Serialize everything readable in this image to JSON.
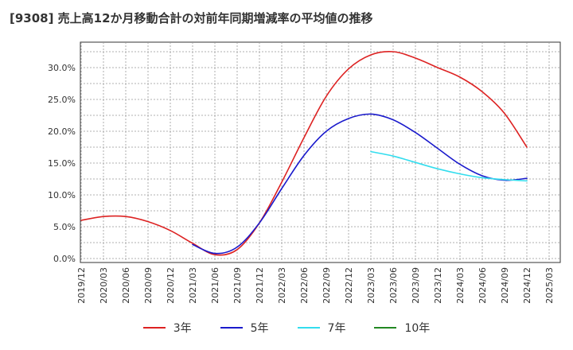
{
  "chart_data": {
    "type": "line",
    "title": "[9308]  売上高12か月移動合計の対前年同期増減率の平均値の推移",
    "xlabel": "",
    "ylabel": "",
    "ylim": [
      0,
      33.5
    ],
    "yticks": [
      "0.0%",
      "5.0%",
      "10.0%",
      "15.0%",
      "20.0%",
      "25.0%",
      "30.0%"
    ],
    "xticks": [
      "2019/12",
      "2020/03",
      "2020/06",
      "2020/09",
      "2020/12",
      "2021/03",
      "2021/06",
      "2021/09",
      "2021/12",
      "2022/03",
      "2022/06",
      "2022/09",
      "2022/12",
      "2023/03",
      "2023/06",
      "2023/09",
      "2023/12",
      "2024/03",
      "2024/06",
      "2024/09",
      "2024/12",
      "2025/03"
    ],
    "grid": true,
    "legend_position": "bottom",
    "series": [
      {
        "name": "3年",
        "color": "#dd2222",
        "points": [
          [
            "2019/12",
            6.0
          ],
          [
            "2020/03",
            6.6
          ],
          [
            "2020/06",
            6.6
          ],
          [
            "2020/09",
            5.8
          ],
          [
            "2020/12",
            4.4
          ],
          [
            "2021/03",
            2.4
          ],
          [
            "2021/06",
            0.6
          ],
          [
            "2021/09",
            1.4
          ],
          [
            "2021/12",
            5.6
          ],
          [
            "2022/03",
            12.0
          ],
          [
            "2022/06",
            19.0
          ],
          [
            "2022/09",
            25.5
          ],
          [
            "2022/12",
            29.8
          ],
          [
            "2023/03",
            32.0
          ],
          [
            "2023/06",
            32.5
          ],
          [
            "2023/09",
            31.5
          ],
          [
            "2023/12",
            30.0
          ],
          [
            "2024/03",
            28.5
          ],
          [
            "2024/06",
            26.2
          ],
          [
            "2024/09",
            22.8
          ],
          [
            "2024/12",
            17.5
          ]
        ]
      },
      {
        "name": "5年",
        "color": "#1a1acc",
        "points": [
          [
            "2021/03",
            2.2
          ],
          [
            "2021/06",
            0.8
          ],
          [
            "2021/09",
            1.8
          ],
          [
            "2021/12",
            5.6
          ],
          [
            "2022/03",
            11.0
          ],
          [
            "2022/06",
            16.2
          ],
          [
            "2022/09",
            20.0
          ],
          [
            "2022/12",
            22.0
          ],
          [
            "2023/03",
            22.7
          ],
          [
            "2023/06",
            21.8
          ],
          [
            "2023/09",
            19.8
          ],
          [
            "2023/12",
            17.3
          ],
          [
            "2024/03",
            14.8
          ],
          [
            "2024/06",
            13.0
          ],
          [
            "2024/09",
            12.3
          ],
          [
            "2024/12",
            12.6
          ]
        ]
      },
      {
        "name": "7年",
        "color": "#33ddee",
        "points": [
          [
            "2023/03",
            16.8
          ],
          [
            "2023/06",
            16.1
          ],
          [
            "2023/09",
            15.1
          ],
          [
            "2023/12",
            14.1
          ],
          [
            "2024/03",
            13.3
          ],
          [
            "2024/06",
            12.7
          ],
          [
            "2024/09",
            12.4
          ],
          [
            "2024/12",
            12.2
          ]
        ]
      },
      {
        "name": "10年",
        "color": "#228822",
        "points": []
      }
    ]
  }
}
